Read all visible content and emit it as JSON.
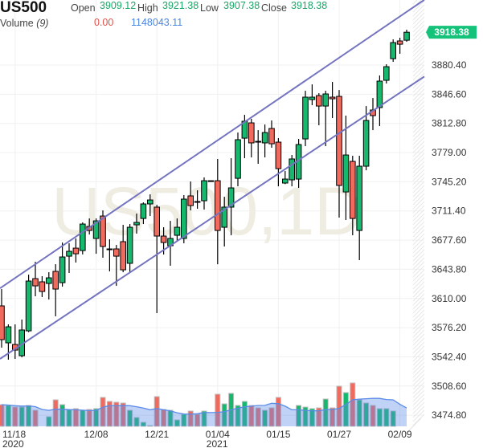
{
  "header": {
    "symbol": "US500",
    "open_label": "Open",
    "open": "3909.12",
    "high_label": "High",
    "high": "3921.38",
    "low_label": "Low",
    "low": "3907.38",
    "close_label": "Close",
    "close": "3918.38",
    "volume_label": "Volume",
    "volume_period": "(9)",
    "volume_value": "0.00",
    "volume_ma": "1148043.11"
  },
  "colors": {
    "up": "#16b86e",
    "down": "#f06a5e",
    "channel": "#7474c0",
    "last_price": "#14c27a",
    "volume_ma": "#5b8be8"
  },
  "chart_data": {
    "type": "candlestick",
    "title": "US500,1D",
    "watermark": "US500,1D",
    "last_price": "3918.38",
    "price_ticks": [
      "3880.40",
      "3846.60",
      "3812.80",
      "3779.00",
      "3745.20",
      "3711.40",
      "3677.60",
      "3643.80",
      "3610.00",
      "3576.20",
      "3542.40",
      "3508.60",
      "3474.80"
    ],
    "date_ticks": [
      {
        "index": 2,
        "label": "11/18",
        "year": "2020"
      },
      {
        "index": 14,
        "label": "12/08"
      },
      {
        "index": 23,
        "label": "12/21"
      },
      {
        "index": 32,
        "label": "01/04",
        "year": "2021"
      },
      {
        "index": 41,
        "label": "01/15"
      },
      {
        "index": 50,
        "label": "01/27"
      },
      {
        "index": 59,
        "label": "02/09"
      }
    ],
    "volume_ma_period": 9,
    "channel": {
      "upper": [
        [
          -0.24,
          3621.8
        ],
        [
          49.8,
          3887.8
        ]
      ],
      "lower": [
        [
          -0.24,
          3540.0
        ],
        [
          49.8,
          3800.4
        ]
      ]
    },
    "ohlcv": [
      [
        3601.4,
        3620.9,
        3553.0,
        3562.3,
        1350000
      ],
      [
        3558.6,
        3580.0,
        3539.1,
        3577.2,
        1300000
      ],
      [
        3556.7,
        3580.0,
        3540.0,
        3550.2,
        1200000
      ],
      [
        3543.7,
        3585.6,
        3541.8,
        3573.5,
        1200000
      ],
      [
        3572.5,
        3637.6,
        3571.0,
        3630.2,
        1300000
      ],
      [
        3633.0,
        3652.5,
        3612.5,
        3624.6,
        1000000
      ],
      [
        3629.3,
        3635.8,
        3611.6,
        3618.1,
        0
      ],
      [
        3627.4,
        3640.4,
        3608.8,
        3633.9,
        600000
      ],
      [
        3641.4,
        3649.7,
        3589.3,
        3620.9,
        1650000
      ],
      [
        3628.3,
        3674.8,
        3623.7,
        3658.1,
        1350000
      ],
      [
        3659.0,
        3673.9,
        3639.5,
        3664.6,
        1050000
      ],
      [
        3668.3,
        3679.5,
        3651.6,
        3661.8,
        1100000
      ],
      [
        3665.5,
        3698.1,
        3661.0,
        3696.2,
        1000000
      ],
      [
        3693.4,
        3702.7,
        3684.1,
        3688.8,
        1050000
      ],
      [
        3679.5,
        3702.7,
        3661.8,
        3699.9,
        1100000
      ],
      [
        3705.5,
        3712.0,
        3657.2,
        3670.2,
        1800000
      ],
      [
        3667.4,
        3678.6,
        3641.4,
        3666.5,
        1550000
      ],
      [
        3667.4,
        3672.0,
        3624.6,
        3659.0,
        1500000
      ],
      [
        3675.8,
        3695.3,
        3640.4,
        3643.2,
        1450000
      ],
      [
        3650.7,
        3696.2,
        3640.4,
        3692.5,
        1000000
      ],
      [
        3695.3,
        3708.3,
        3685.1,
        3698.1,
        550000
      ],
      [
        3702.7,
        3721.3,
        3696.2,
        3719.5,
        250000
      ],
      [
        3719.5,
        3730.6,
        3705.5,
        3724.1,
        50000
      ],
      [
        3715.8,
        3718.5,
        3593.0,
        3682.3,
        1850000
      ],
      [
        3682.3,
        3692.5,
        3660.9,
        3674.8,
        1050000
      ],
      [
        3671.1,
        3699.9,
        3647.9,
        3679.5,
        1000000
      ],
      [
        3683.2,
        3702.7,
        3675.8,
        3692.5,
        400000
      ],
      [
        3679.5,
        3729.7,
        3673.9,
        3725.1,
        750000
      ],
      [
        3728.8,
        3745.5,
        3712.0,
        3717.6,
        950000
      ],
      [
        3722.3,
        3735.3,
        3713.9,
        3722.0,
        750000
      ],
      [
        3723.2,
        3750.2,
        3713.0,
        3746.4,
        950000
      ],
      [
        3746.4,
        3746.4,
        3746.4,
        3746.4,
        0
      ],
      [
        3746.4,
        3771.6,
        3649.7,
        3688.8,
        2000000
      ],
      [
        3692.5,
        3727.8,
        3670.2,
        3715.8,
        1400000
      ],
      [
        3715.8,
        3772.5,
        3683.2,
        3738.1,
        2050000
      ],
      [
        3749.2,
        3802.2,
        3739.9,
        3793.9,
        1300000
      ],
      [
        3795.7,
        3822.7,
        3772.5,
        3815.3,
        1550000
      ],
      [
        3813.4,
        3818.1,
        3773.4,
        3790.2,
        1300000
      ],
      [
        3792.0,
        3805.0,
        3766.0,
        3791.5,
        1150000
      ],
      [
        3790.2,
        3811.5,
        3773.4,
        3802.2,
        1000000
      ],
      [
        3806.9,
        3816.2,
        3784.6,
        3789.2,
        1150000
      ],
      [
        3791.1,
        3795.7,
        3739.9,
        3760.4,
        1800000
      ],
      [
        3743.7,
        3757.6,
        3742.5,
        3748.3,
        0
      ],
      [
        3747.4,
        3776.2,
        3739.9,
        3771.6,
        0
      ],
      [
        3748.3,
        3794.8,
        3738.1,
        3788.3,
        1300000
      ],
      [
        3794.8,
        3850.6,
        3786.4,
        3843.2,
        1200000
      ],
      [
        3840.4,
        3858.0,
        3833.9,
        3843.2,
        1100000
      ],
      [
        3845.0,
        3847.8,
        3810.6,
        3832.9,
        1150000
      ],
      [
        3832.9,
        3850.6,
        3786.4,
        3846.9,
        1700000
      ],
      [
        3843.2,
        3860.8,
        3819.0,
        3841.3,
        1150000
      ],
      [
        3844.1,
        3851.5,
        3703.7,
        3740.9,
        2500000
      ],
      [
        3733.4,
        3821.8,
        3700.9,
        3776.2,
        2100000
      ],
      [
        3768.8,
        3775.3,
        3683.2,
        3702.7,
        2700000
      ],
      [
        3688.8,
        3775.3,
        3654.4,
        3763.2,
        1650000
      ],
      [
        3763.2,
        3832.9,
        3758.5,
        3816.2,
        1450000
      ],
      [
        3828.3,
        3842.2,
        3805.0,
        3821.8,
        1300000
      ],
      [
        3831.1,
        3868.3,
        3809.7,
        3861.8,
        1100000
      ],
      [
        3862.7,
        3881.3,
        3859.0,
        3878.5,
        1100000
      ],
      [
        3887.8,
        3910.1,
        3884.1,
        3906.4,
        950000
      ],
      [
        3908.3,
        3912.0,
        3893.4,
        3904.5,
        0
      ],
      [
        3909.12,
        3921.38,
        3907.38,
        3918.38,
        0
      ]
    ]
  }
}
